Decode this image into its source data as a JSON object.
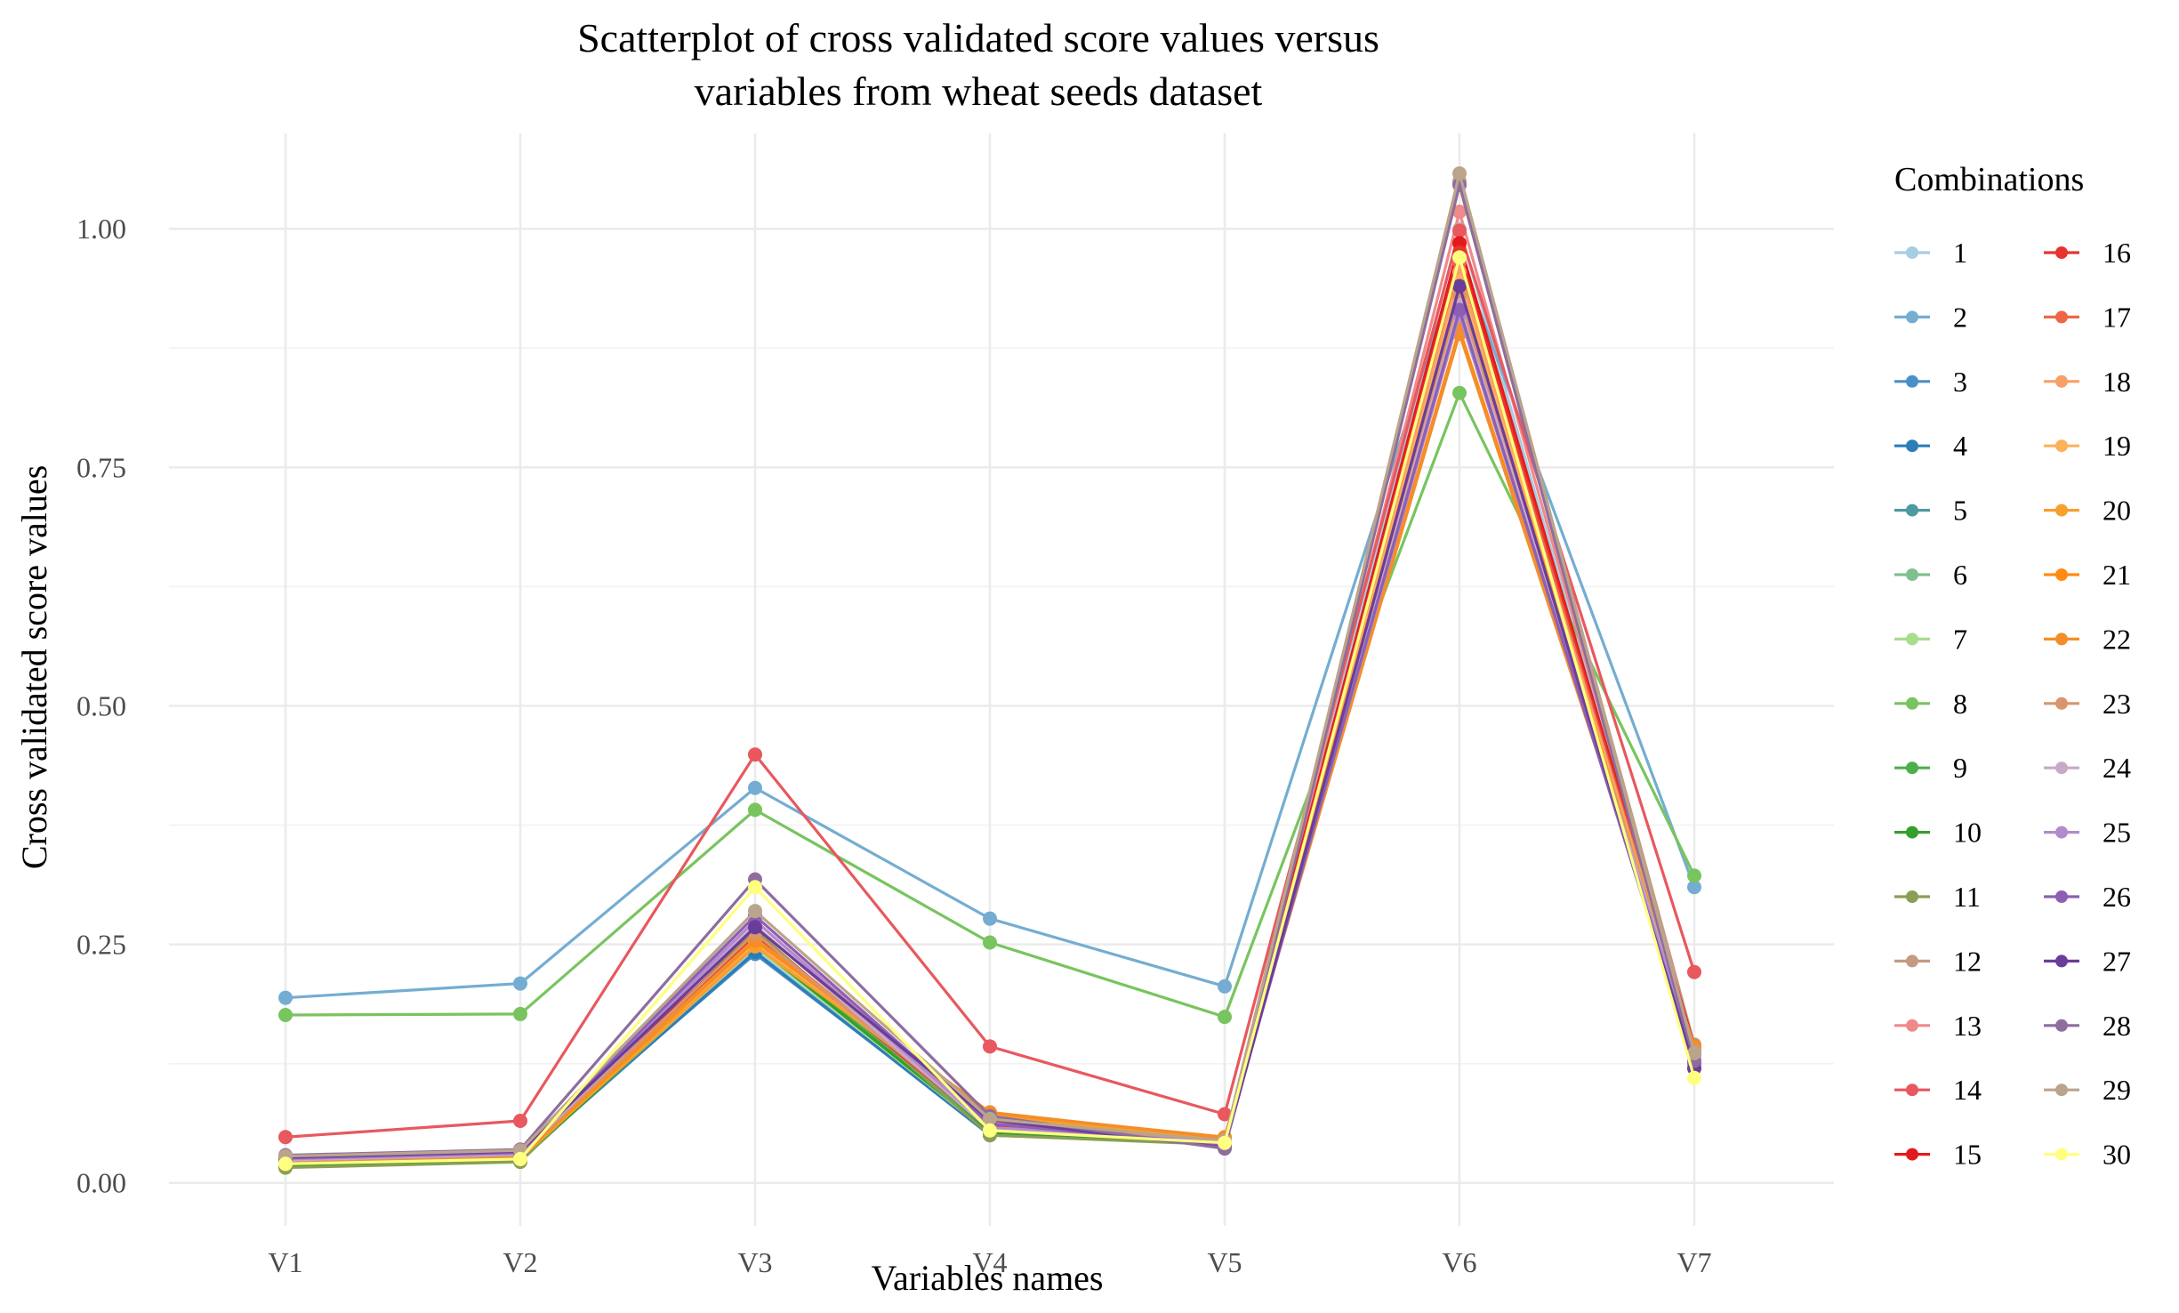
{
  "chart_data": {
    "type": "line",
    "title": [
      "Scatterplot of cross validated score values versus",
      "variables from wheat seeds dataset"
    ],
    "xlabel": "Variables names",
    "ylabel": "Cross validated score values",
    "categories": [
      "V1",
      "V2",
      "V3",
      "V4",
      "V5",
      "V6",
      "V7"
    ],
    "ylim": [
      -0.045,
      1.1
    ],
    "yticks": [
      0.0,
      0.25,
      0.5,
      0.75,
      1.0
    ],
    "ytick_labels": [
      "0.00",
      "0.25",
      "0.50",
      "0.75",
      "1.00"
    ],
    "grid": true,
    "legend_title": "Combinations",
    "legend_position": "right",
    "series": [
      {
        "name": "1",
        "color": "#A6CEE3",
        "values": [
          0.025,
          0.03,
          0.245,
          0.055,
          0.042,
          1.0,
          0.14
        ]
      },
      {
        "name": "2",
        "color": "#74ADD1",
        "values": [
          0.194,
          0.209,
          0.414,
          0.277,
          0.206,
          0.97,
          0.31
        ]
      },
      {
        "name": "3",
        "color": "#4A8FC7",
        "values": [
          0.022,
          0.028,
          0.24,
          0.052,
          0.04,
          0.95,
          0.138
        ]
      },
      {
        "name": "4",
        "color": "#2D7DB8",
        "values": [
          0.02,
          0.025,
          0.242,
          0.05,
          0.042,
          0.93,
          0.14
        ]
      },
      {
        "name": "5",
        "color": "#4D9AA0",
        "values": [
          0.022,
          0.027,
          0.25,
          0.053,
          0.041,
          0.94,
          0.137
        ]
      },
      {
        "name": "6",
        "color": "#7FC08F",
        "values": [
          0.02,
          0.026,
          0.255,
          0.054,
          0.04,
          0.96,
          0.14
        ]
      },
      {
        "name": "7",
        "color": "#A8DD8A",
        "values": [
          0.018,
          0.024,
          0.248,
          0.052,
          0.043,
          0.95,
          0.139
        ]
      },
      {
        "name": "8",
        "color": "#78C45F",
        "values": [
          0.176,
          0.177,
          0.391,
          0.252,
          0.174,
          0.828,
          0.322
        ]
      },
      {
        "name": "9",
        "color": "#4DAF4A",
        "values": [
          0.02,
          0.025,
          0.252,
          0.055,
          0.042,
          0.96,
          0.142
        ]
      },
      {
        "name": "10",
        "color": "#33A02C",
        "values": [
          0.018,
          0.023,
          0.25,
          0.053,
          0.041,
          0.955,
          0.141
        ]
      },
      {
        "name": "11",
        "color": "#8B9E55",
        "values": [
          0.016,
          0.022,
          0.265,
          0.05,
          0.04,
          0.945,
          0.14
        ]
      },
      {
        "name": "12",
        "color": "#C49A82",
        "values": [
          0.022,
          0.028,
          0.27,
          0.056,
          0.044,
          1.05,
          0.145
        ]
      },
      {
        "name": "13",
        "color": "#F08A8A",
        "values": [
          0.024,
          0.03,
          0.275,
          0.06,
          0.045,
          1.018,
          0.142
        ]
      },
      {
        "name": "14",
        "color": "#E8585E",
        "values": [
          0.048,
          0.065,
          0.449,
          0.143,
          0.072,
          0.998,
          0.221
        ]
      },
      {
        "name": "15",
        "color": "#E31A1C",
        "values": [
          0.025,
          0.032,
          0.262,
          0.06,
          0.045,
          0.985,
          0.143
        ]
      },
      {
        "name": "16",
        "color": "#E8342E",
        "values": [
          0.024,
          0.03,
          0.258,
          0.058,
          0.044,
          0.975,
          0.141
        ]
      },
      {
        "name": "17",
        "color": "#EF6548",
        "values": [
          0.023,
          0.03,
          0.255,
          0.062,
          0.046,
          0.965,
          0.14
        ]
      },
      {
        "name": "18",
        "color": "#F7A067",
        "values": [
          0.022,
          0.028,
          0.252,
          0.065,
          0.047,
          0.955,
          0.139
        ]
      },
      {
        "name": "19",
        "color": "#FDB15A",
        "values": [
          0.021,
          0.027,
          0.25,
          0.068,
          0.046,
          0.945,
          0.138
        ]
      },
      {
        "name": "20",
        "color": "#F89F2F",
        "values": [
          0.02,
          0.026,
          0.248,
          0.07,
          0.047,
          0.935,
          0.14
        ]
      },
      {
        "name": "21",
        "color": "#FF8C12",
        "values": [
          0.021,
          0.027,
          0.254,
          0.073,
          0.048,
          0.895,
          0.143
        ]
      },
      {
        "name": "22",
        "color": "#F28E2B",
        "values": [
          0.022,
          0.028,
          0.256,
          0.074,
          0.047,
          0.89,
          0.142
        ]
      },
      {
        "name": "23",
        "color": "#D9956B",
        "values": [
          0.023,
          0.029,
          0.262,
          0.058,
          0.045,
          0.93,
          0.138
        ]
      },
      {
        "name": "24",
        "color": "#C9A9C7",
        "values": [
          0.024,
          0.03,
          0.27,
          0.056,
          0.044,
          0.92,
          0.136
        ]
      },
      {
        "name": "25",
        "color": "#B38ACF",
        "values": [
          0.025,
          0.031,
          0.275,
          0.058,
          0.043,
          0.91,
          0.134
        ]
      },
      {
        "name": "26",
        "color": "#8C5FB5",
        "values": [
          0.026,
          0.032,
          0.28,
          0.062,
          0.04,
          0.915,
          0.125
        ]
      },
      {
        "name": "27",
        "color": "#6A3D9A",
        "values": [
          0.027,
          0.033,
          0.268,
          0.066,
          0.037,
          0.94,
          0.12
        ]
      },
      {
        "name": "28",
        "color": "#8E6D9E",
        "values": [
          0.029,
          0.035,
          0.318,
          0.07,
          0.036,
          1.046,
          0.128
        ]
      },
      {
        "name": "29",
        "color": "#BBA48C",
        "values": [
          0.028,
          0.034,
          0.285,
          0.067,
          0.044,
          1.058,
          0.136
        ]
      },
      {
        "name": "30",
        "color": "#FFFF80",
        "values": [
          0.02,
          0.025,
          0.31,
          0.055,
          0.042,
          0.97,
          0.11
        ]
      }
    ]
  }
}
